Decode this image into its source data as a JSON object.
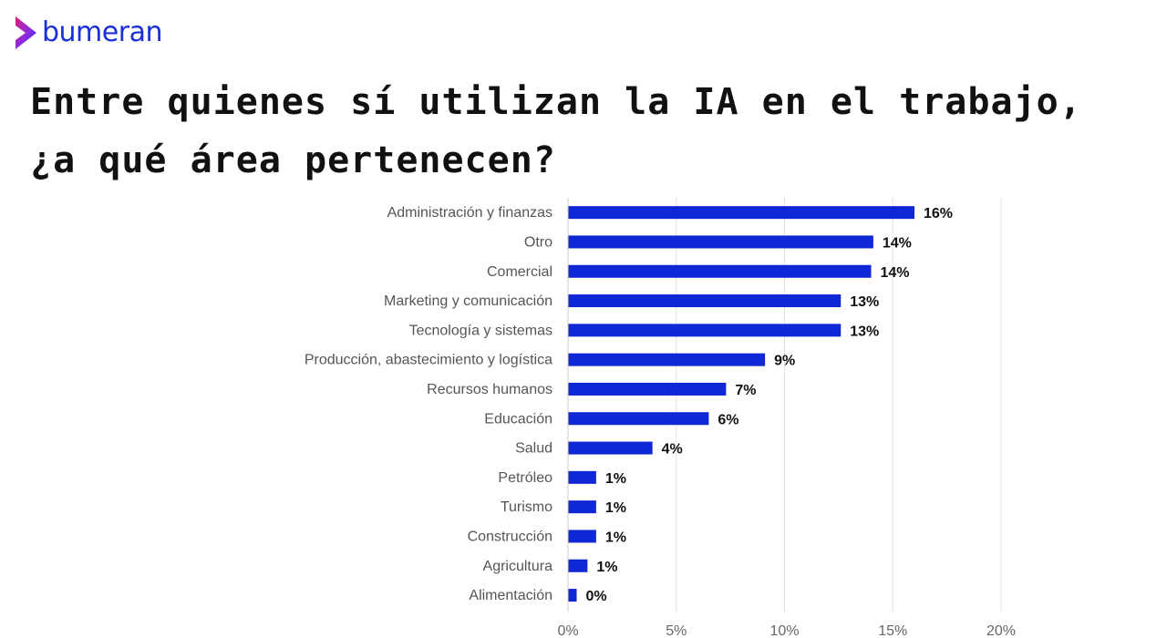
{
  "brand": {
    "name": "bumeran",
    "color": "#1a2fd8",
    "icon": "chevron-right-icon"
  },
  "title": "Entre quienes sí utilizan la IA en el trabajo, ¿a qué área pertenecen?",
  "chart_data": {
    "type": "bar",
    "orientation": "horizontal",
    "title": "Entre quienes sí utilizan la IA en el trabajo, ¿a qué área pertenecen?",
    "xlabel": "",
    "ylabel": "",
    "categories": [
      "Administración y finanzas",
      "Otro",
      "Comercial",
      "Marketing y comunicación",
      "Tecnología y sistemas",
      "Producción, abastecimiento y logística",
      "Recursos humanos",
      "Educación",
      "Salud",
      "Petróleo",
      "Turismo",
      "Construcción",
      "Agricultura",
      "Alimentación"
    ],
    "values": [
      16.0,
      14.1,
      14.0,
      12.6,
      12.6,
      9.1,
      7.3,
      6.5,
      3.9,
      1.3,
      1.3,
      1.3,
      0.9,
      0.4
    ],
    "value_labels": [
      "16%",
      "14%",
      "14%",
      "13%",
      "13%",
      "9%",
      "7%",
      "6%",
      "4%",
      "1%",
      "1%",
      "1%",
      "1%",
      "0%"
    ],
    "xlim": [
      0,
      20
    ],
    "xticks": [
      0,
      5,
      10,
      15,
      20
    ],
    "xtick_labels": [
      "0%",
      "5%",
      "10%",
      "15%",
      "20%"
    ],
    "grid": true,
    "legend": "none",
    "bar_color": "#1027d6"
  }
}
